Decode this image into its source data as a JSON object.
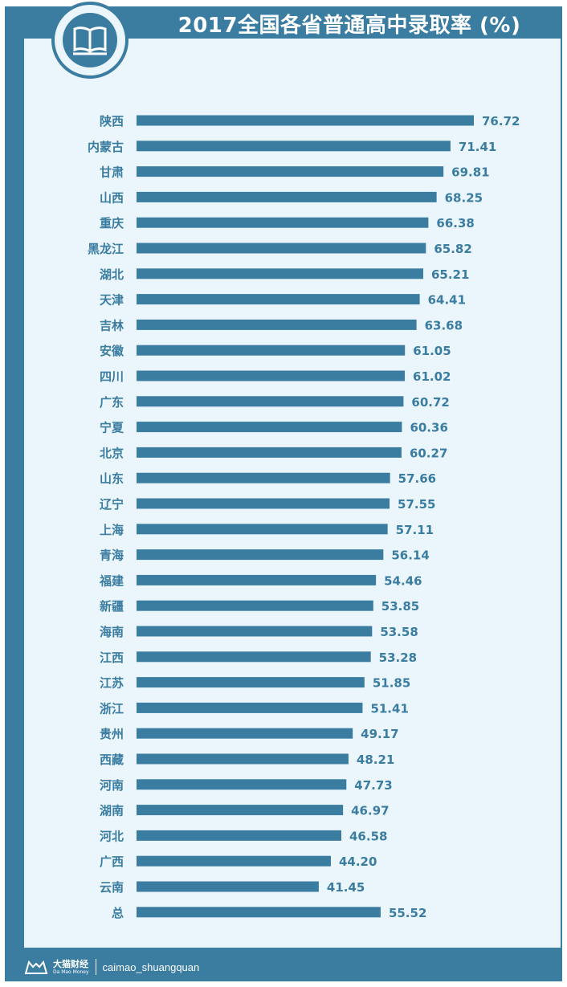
{
  "header": {
    "title": "2017全国各省普通高中录取率 (%)",
    "icon": "book-icon"
  },
  "colors": {
    "bar": "#3b7ca1",
    "value_text": "#3b7ca1",
    "label_text": "#3b7ca1",
    "frame": "#3b7ca1",
    "panel": "#eaf6fb"
  },
  "chart_data": {
    "type": "bar",
    "orientation": "horizontal",
    "title": "2017全国各省普通高中录取率 (%)",
    "categories": [
      "陕西",
      "内蒙古",
      "甘肃",
      "山西",
      "重庆",
      "黑龙江",
      "湖北",
      "天津",
      "吉林",
      "安徽",
      "四川",
      "广东",
      "宁夏",
      "北京",
      "山东",
      "辽宁",
      "上海",
      "青海",
      "福建",
      "新疆",
      "海南",
      "江西",
      "江苏",
      "浙江",
      "贵州",
      "西藏",
      "河南",
      "湖南",
      "河北",
      "广西",
      "云南",
      "总"
    ],
    "values": [
      76.72,
      71.41,
      69.81,
      68.25,
      66.38,
      65.82,
      65.21,
      64.41,
      63.68,
      61.05,
      61.02,
      60.72,
      60.36,
      60.27,
      57.66,
      57.55,
      57.11,
      56.14,
      54.46,
      53.85,
      53.58,
      53.28,
      51.85,
      51.41,
      49.17,
      48.21,
      47.73,
      46.97,
      46.58,
      44.2,
      41.45,
      55.52
    ],
    "value_labels": [
      "76.72",
      "71.41",
      "69.81",
      "68.25",
      "66.38",
      "65.82",
      "65.21",
      "64.41",
      "63.68",
      "61.05",
      "61.02",
      "60.72",
      "60.36",
      "60.27",
      "57.66",
      "57.55",
      "57.11",
      "56.14",
      "54.46",
      "53.85",
      "53.58",
      "53.28",
      "51.85",
      "51.41",
      "49.17",
      "48.21",
      "47.73",
      "46.97",
      "46.58",
      "44.20",
      "41.45",
      "55.52"
    ],
    "xlim": [
      0,
      76.72
    ],
    "grid": false,
    "legend": "none"
  },
  "footer": {
    "brand_cn": "大猫财经",
    "brand_en": "Da Mao Money",
    "handle": "caimao_shuangquan"
  }
}
